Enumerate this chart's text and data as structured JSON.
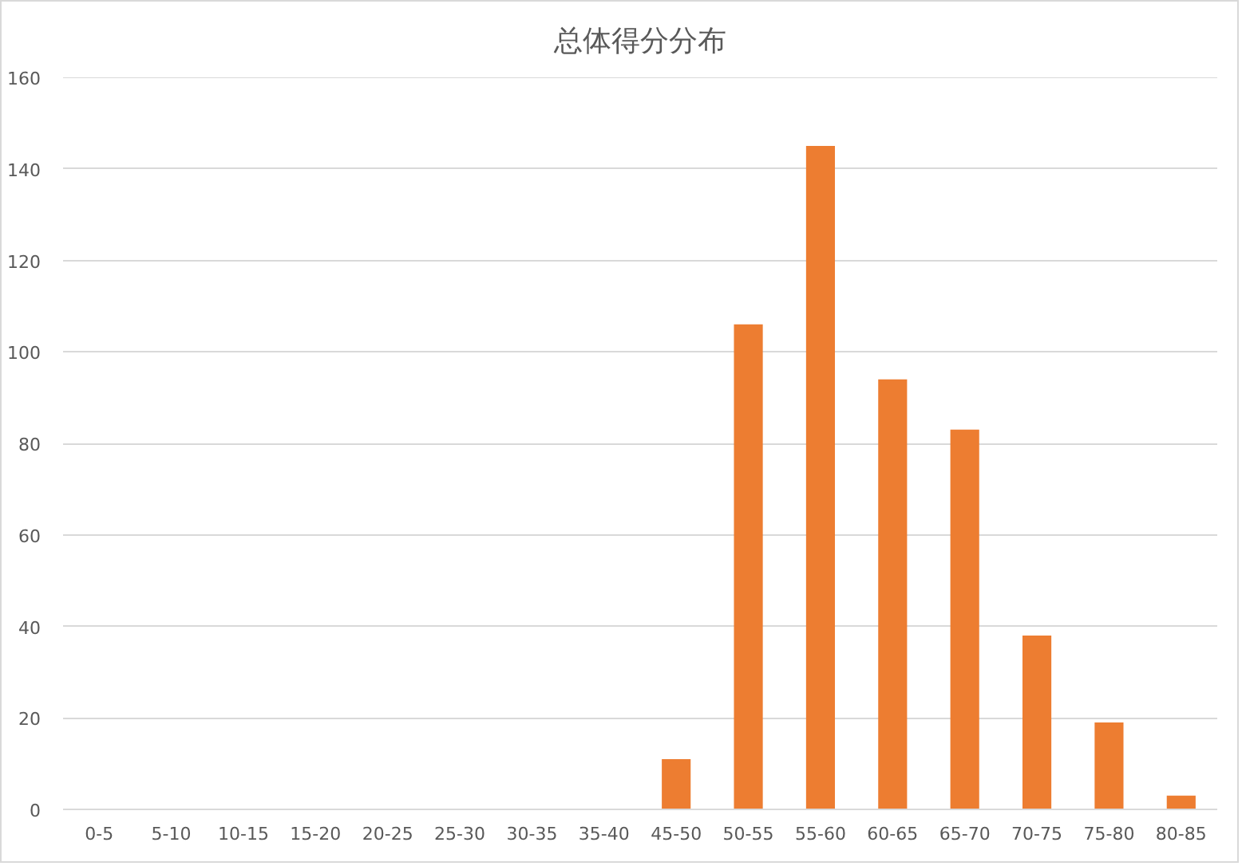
{
  "chart_data": {
    "type": "bar",
    "title": "总体得分分布",
    "categories": [
      "0-5",
      "5-10",
      "10-15",
      "15-20",
      "20-25",
      "25-30",
      "30-35",
      "35-40",
      "45-50",
      "50-55",
      "55-60",
      "60-65",
      "65-70",
      "70-75",
      "75-80",
      "80-85"
    ],
    "values": [
      0,
      0,
      0,
      0,
      0,
      0,
      0,
      0,
      11,
      106,
      145,
      94,
      83,
      38,
      19,
      3
    ],
    "color": "#ed7d31",
    "ylim": [
      0,
      160
    ],
    "yticks": [
      0,
      20,
      40,
      60,
      80,
      100,
      120,
      140,
      160
    ],
    "grid": "y"
  }
}
